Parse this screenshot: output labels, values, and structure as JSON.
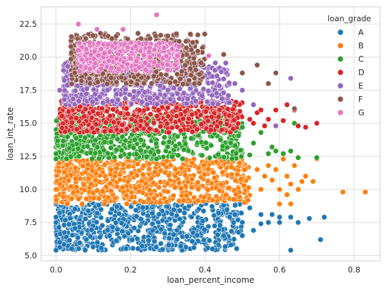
{
  "chart_data": {
    "type": "scatter",
    "title": "",
    "xlabel": "loan_percent_income",
    "ylabel": "loan_int_rate",
    "xlim": [
      -0.04,
      0.87
    ],
    "ylim": [
      4.6,
      23.8
    ],
    "x_ticks": [
      0.0,
      0.2,
      0.4,
      0.6,
      0.8
    ],
    "x_tick_labels": [
      "0.0",
      "0.2",
      "0.4",
      "0.6",
      "0.8"
    ],
    "y_ticks": [
      5.0,
      7.5,
      10.0,
      12.5,
      15.0,
      17.5,
      20.0,
      22.5
    ],
    "y_tick_labels": [
      "5.0",
      "7.5",
      "10.0",
      "12.5",
      "15.0",
      "17.5",
      "20.0",
      "22.5"
    ],
    "grid": true,
    "legend": {
      "title": "loan_grade",
      "placement": "top-right",
      "entries": [
        "A",
        "B",
        "C",
        "D",
        "E",
        "F",
        "G"
      ]
    },
    "series": [
      {
        "name": "A",
        "color": "#1f77b4",
        "dense_region": {
          "x_range": [
            0.0,
            0.5
          ],
          "y_range": [
            5.4,
            9.0
          ]
        },
        "points": [
          [
            0.0,
            7.9
          ],
          [
            0.0,
            8.9
          ],
          [
            0.0,
            7.5
          ],
          [
            0.01,
            6.0
          ],
          [
            0.0,
            5.4
          ],
          [
            0.45,
            8.8
          ],
          [
            0.48,
            8.1
          ],
          [
            0.5,
            7.5
          ],
          [
            0.52,
            8.6
          ],
          [
            0.53,
            6.9
          ],
          [
            0.55,
            7.4
          ],
          [
            0.55,
            8.1
          ],
          [
            0.57,
            7.5
          ],
          [
            0.58,
            8.1
          ],
          [
            0.6,
            7.9
          ],
          [
            0.6,
            7.5
          ],
          [
            0.63,
            7.9
          ],
          [
            0.63,
            5.4
          ],
          [
            0.65,
            7.5
          ],
          [
            0.68,
            7.8
          ],
          [
            0.71,
            6.2
          ],
          [
            0.72,
            7.9
          ],
          [
            0.42,
            5.5
          ],
          [
            0.45,
            6.5
          ],
          [
            0.47,
            5.8
          ],
          [
            0.5,
            6.5
          ]
        ]
      },
      {
        "name": "B",
        "color": "#ff7f0e",
        "dense_region": {
          "x_range": [
            0.0,
            0.52
          ],
          "y_range": [
            9.0,
            12.3
          ]
        },
        "points": [
          [
            0.0,
            10.0
          ],
          [
            0.01,
            10.4
          ],
          [
            0.03,
            8.9
          ],
          [
            0.07,
            8.9
          ],
          [
            0.13,
            8.9
          ],
          [
            0.19,
            8.9
          ],
          [
            0.54,
            11.5
          ],
          [
            0.55,
            10.0
          ],
          [
            0.56,
            11.0
          ],
          [
            0.57,
            11.8
          ],
          [
            0.58,
            10.7
          ],
          [
            0.59,
            11.5
          ],
          [
            0.6,
            10.0
          ],
          [
            0.61,
            12.3
          ],
          [
            0.62,
            11.0
          ],
          [
            0.62,
            9.6
          ],
          [
            0.63,
            10.4
          ],
          [
            0.64,
            11.8
          ],
          [
            0.65,
            10.0
          ],
          [
            0.66,
            10.6
          ],
          [
            0.67,
            11.0
          ],
          [
            0.69,
            10.6
          ],
          [
            0.7,
            12.3
          ],
          [
            0.6,
            8.9
          ],
          [
            0.63,
            8.9
          ],
          [
            0.77,
            9.8
          ],
          [
            0.83,
            9.8
          ]
        ]
      },
      {
        "name": "C",
        "color": "#2ca02c",
        "dense_region": {
          "x_range": [
            0.0,
            0.5
          ],
          "y_range": [
            12.3,
            15.6
          ]
        },
        "points": [
          [
            0.0,
            12.7
          ],
          [
            0.0,
            12.3
          ],
          [
            0.5,
            14.7
          ],
          [
            0.52,
            12.6
          ],
          [
            0.53,
            13.5
          ],
          [
            0.55,
            14.3
          ],
          [
            0.57,
            12.7
          ],
          [
            0.58,
            13.2
          ],
          [
            0.59,
            12.9
          ],
          [
            0.61,
            12.7
          ],
          [
            0.63,
            12.9
          ],
          [
            0.64,
            15.0
          ],
          [
            0.65,
            12.4
          ],
          [
            0.7,
            12.4
          ]
        ]
      },
      {
        "name": "D",
        "color": "#d62728",
        "dense_region": {
          "x_range": [
            0.01,
            0.5
          ],
          "y_range": [
            14.3,
            16.7
          ]
        },
        "points": [
          [
            0.52,
            15.3
          ],
          [
            0.53,
            15.0
          ],
          [
            0.54,
            15.8
          ],
          [
            0.55,
            16.0
          ],
          [
            0.56,
            14.8
          ],
          [
            0.57,
            15.3
          ],
          [
            0.59,
            16.0
          ],
          [
            0.61,
            15.2
          ],
          [
            0.62,
            16.4
          ],
          [
            0.64,
            16.0
          ],
          [
            0.65,
            14.8
          ],
          [
            0.67,
            14.7
          ],
          [
            0.7,
            15.0
          ]
        ]
      },
      {
        "name": "E",
        "color": "#9467bd",
        "dense_region": {
          "x_range": [
            0.02,
            0.47
          ],
          "y_range": [
            16.4,
            19.6
          ]
        },
        "points": [
          [
            0.01,
            17.5
          ],
          [
            0.02,
            19.0
          ],
          [
            0.4,
            19.9
          ],
          [
            0.45,
            17.3
          ],
          [
            0.48,
            18.0
          ],
          [
            0.5,
            17.5
          ],
          [
            0.53,
            16.4
          ],
          [
            0.59,
            14.8
          ],
          [
            0.63,
            18.4
          ]
        ]
      },
      {
        "name": "F",
        "color": "#8c564b",
        "dense_region": {
          "x_range": [
            0.04,
            0.4
          ],
          "y_range": [
            17.9,
            21.8
          ]
        },
        "points": [
          [
            0.04,
            20.8
          ],
          [
            0.08,
            21.4
          ],
          [
            0.15,
            21.4
          ],
          [
            0.22,
            21.8
          ],
          [
            0.3,
            21.6
          ],
          [
            0.35,
            20.7
          ],
          [
            0.45,
            20.2
          ],
          [
            0.5,
            18.8
          ],
          [
            0.54,
            19.4
          ],
          [
            0.57,
            18.0
          ],
          [
            0.59,
            18.8
          ],
          [
            0.64,
            16.1
          ]
        ]
      },
      {
        "name": "G",
        "color": "#e377c2",
        "dense_region": {
          "x_range": [
            0.06,
            0.33
          ],
          "y_range": [
            18.9,
            21.1
          ]
        },
        "points": [
          [
            0.06,
            22.5
          ],
          [
            0.11,
            22.1
          ],
          [
            0.18,
            22.1
          ],
          [
            0.27,
            23.2
          ],
          [
            0.33,
            20.8
          ],
          [
            0.41,
            20.1
          ],
          [
            0.32,
            19.4
          ],
          [
            0.2,
            19.9
          ],
          [
            0.13,
            20.3
          ],
          [
            0.09,
            21.1
          ],
          [
            0.25,
            20.4
          ],
          [
            0.29,
            20.7
          ]
        ]
      }
    ]
  }
}
